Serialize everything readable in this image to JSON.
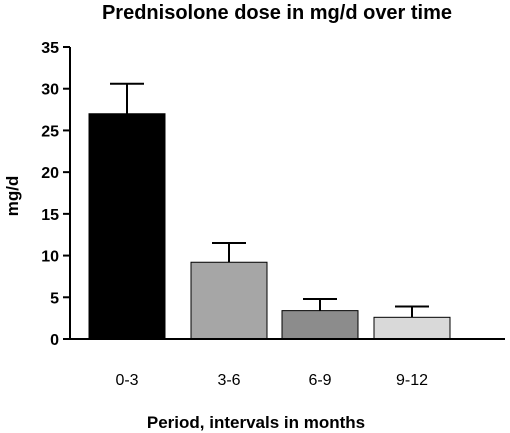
{
  "chart_data": {
    "type": "bar",
    "title": "Prednisolone dose in mg/d over time",
    "xlabel": "Period, intervals in months",
    "ylabel": "mg/d",
    "categories": [
      "0-3",
      "3-6",
      "6-9",
      "9-12"
    ],
    "values": [
      27.0,
      9.2,
      3.4,
      2.6
    ],
    "error_upper": [
      30.6,
      11.5,
      4.8,
      3.9
    ],
    "yticks": [
      "0",
      "5",
      "10",
      "15",
      "20",
      "25",
      "30",
      "35"
    ],
    "ylim": [
      0,
      35
    ],
    "grid": false,
    "legend": "none",
    "colors": [
      "#000000",
      "#a6a6a6",
      "#8c8c8c",
      "#d9d9d9"
    ]
  }
}
